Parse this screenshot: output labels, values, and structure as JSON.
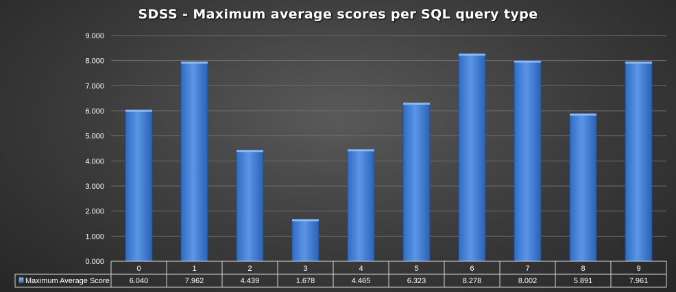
{
  "chart_data": {
    "type": "bar",
    "title": "SDSS - Maximum average scores per SQL query type",
    "xlabel": "",
    "ylabel": "",
    "categories": [
      "0",
      "1",
      "2",
      "3",
      "4",
      "5",
      "6",
      "7",
      "8",
      "9"
    ],
    "series": [
      {
        "name": "Maximum Average Score",
        "values": [
          6.04,
          7.962,
          4.439,
          1.678,
          4.465,
          6.323,
          8.278,
          8.002,
          5.891,
          7.961
        ],
        "value_labels": [
          "6.040",
          "7.962",
          "4.439",
          "1.678",
          "4.465",
          "6.323",
          "8.278",
          "8.002",
          "5.891",
          "7.961"
        ],
        "color": "#4a86d8"
      }
    ],
    "ylim": [
      0,
      9
    ],
    "yticks": [
      "0.000",
      "1.000",
      "2.000",
      "3.000",
      "4.000",
      "5.000",
      "6.000",
      "7.000",
      "8.000",
      "9.000"
    ],
    "grid": true,
    "legend": "data-table-bottom"
  }
}
